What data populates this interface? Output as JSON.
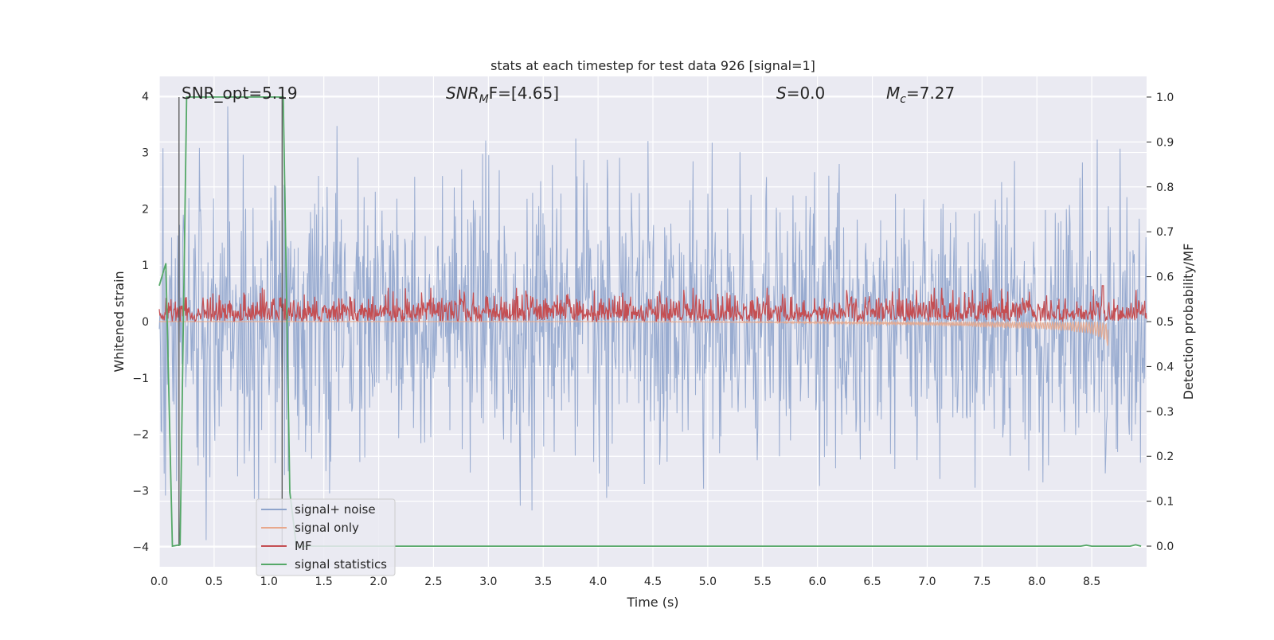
{
  "chart_data": {
    "type": "line",
    "title": "stats at each timestep for test data 926 [signal=1]",
    "xlabel": "Time (s)",
    "ylabel_left": "Whitened strain",
    "ylabel_right": "Detection probability/MF",
    "xlim": [
      0.0,
      9.0
    ],
    "ylim_left": [
      -4.35,
      4.35
    ],
    "ylim_right": [
      -0.046,
      1.046
    ],
    "grid": true,
    "x_ticks": [
      "0.0",
      "0.5",
      "1.0",
      "1.5",
      "2.0",
      "2.5",
      "3.0",
      "3.5",
      "4.0",
      "4.5",
      "5.0",
      "5.5",
      "6.0",
      "6.5",
      "7.0",
      "7.5",
      "8.0",
      "8.5"
    ],
    "y_left_ticks": [
      "4",
      "3",
      "2",
      "1",
      "0",
      "−1",
      "−2",
      "−3",
      "−4"
    ],
    "y_right_ticks": [
      "1.0",
      "0.9",
      "0.8",
      "0.7",
      "0.6",
      "0.5",
      "0.4",
      "0.3",
      "0.2",
      "0.1",
      "0.0"
    ],
    "annotations": {
      "snr_opt": "SNR_opt=5.19",
      "snr_mf_name": "SNR",
      "snr_mf_sub": "M",
      "snr_mf_rest": "F=[4.65]",
      "s_name": "S",
      "s_rest": "=0.0",
      "mc_name": "M",
      "mc_sub": "c",
      "mc_rest": "=7.27"
    },
    "vlines": [
      0.18,
      1.12
    ],
    "legend_position": "lower-left",
    "colors": {
      "signal_noise": "#8fa4cc",
      "signal_only": "#e8a88c",
      "mf": "#c44e52",
      "stats": "#55a868",
      "vline": "#555555"
    },
    "series": [
      {
        "name": "signal+ noise",
        "description": "whitened noisy strain, roughly Gaussian with amplitude up to about +/-4"
      },
      {
        "name": "signal only",
        "description": "chirp waveform growing toward merger near t=8.65 s",
        "x": [
          0.0,
          2.0,
          4.0,
          5.5,
          6.5,
          7.0,
          7.5,
          8.0,
          8.3,
          8.5,
          8.6,
          8.65
        ],
        "y": [
          0.0,
          0.0,
          0.0,
          -0.02,
          -0.05,
          -0.07,
          -0.1,
          -0.13,
          -0.17,
          -0.22,
          -0.3,
          -0.48
        ]
      },
      {
        "name": "MF",
        "description": "matched-filter output on right axis, fluctuating between about 0.5 and 0.58"
      },
      {
        "name": "signal statistics",
        "x": [
          0.0,
          0.06,
          0.12,
          0.19,
          0.25,
          1.13,
          1.19,
          1.25,
          2.0,
          4.0,
          6.0,
          8.0,
          8.4,
          8.45,
          8.5,
          8.85,
          8.9,
          8.95
        ],
        "y": [
          0.58,
          0.63,
          0.0,
          0.003,
          1.0,
          1.0,
          0.12,
          0.0,
          0.0,
          0.0,
          0.0,
          0.0,
          0.0,
          0.002,
          0.0,
          0.0,
          0.003,
          0.0
        ]
      }
    ]
  }
}
